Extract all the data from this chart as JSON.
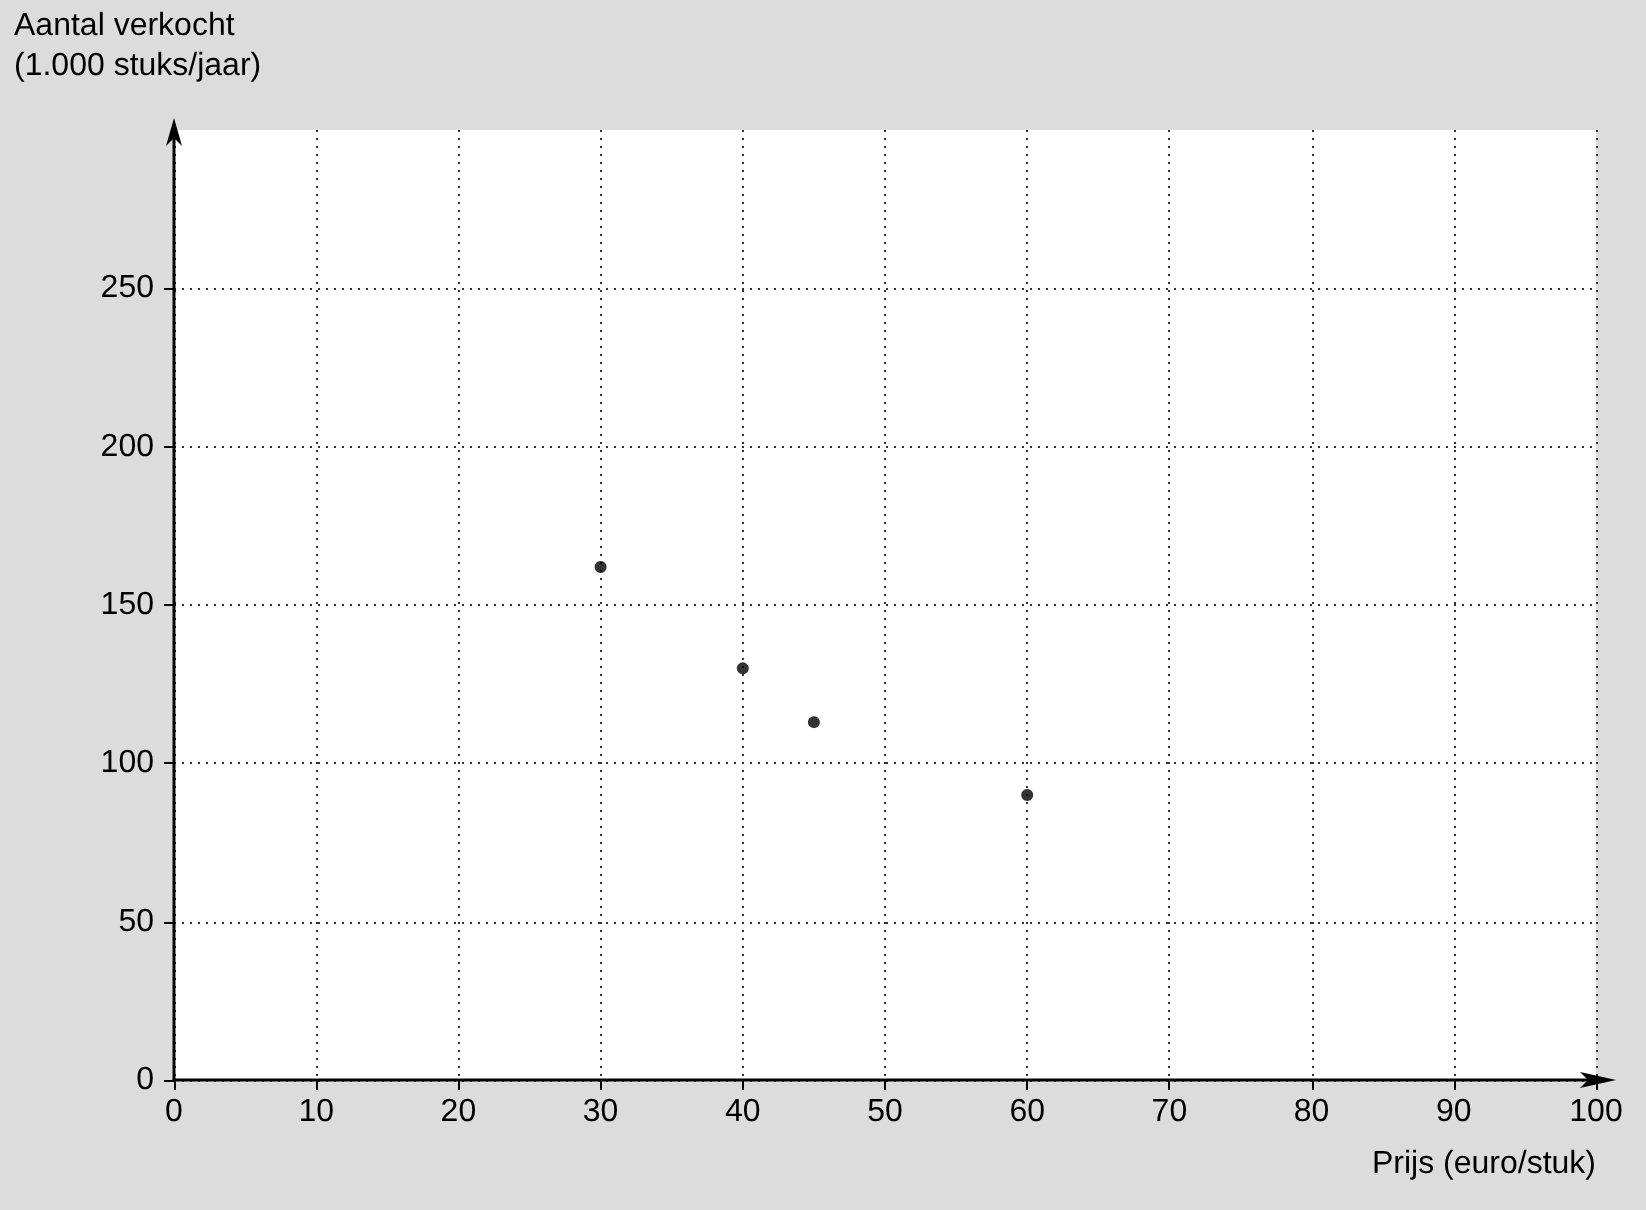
{
  "chart_data": {
    "type": "scatter",
    "xlabel": "Prijs (euro/stuk)",
    "ylabel": "Aantal verkocht\n(1.000 stuks/jaar)",
    "x": [
      30,
      40,
      45,
      60
    ],
    "series": [
      {
        "color": "#000000",
        "values": [
          162,
          130,
          113,
          90
        ]
      }
    ],
    "xlim": [
      0,
      100
    ],
    "xticks": [
      0,
      10,
      20,
      30,
      40,
      50,
      60,
      70,
      80,
      90,
      100
    ],
    "ylim": [
      0,
      300
    ],
    "yticks": [
      0,
      50,
      100,
      150,
      200,
      250
    ],
    "grid": true,
    "marker": "circle"
  }
}
